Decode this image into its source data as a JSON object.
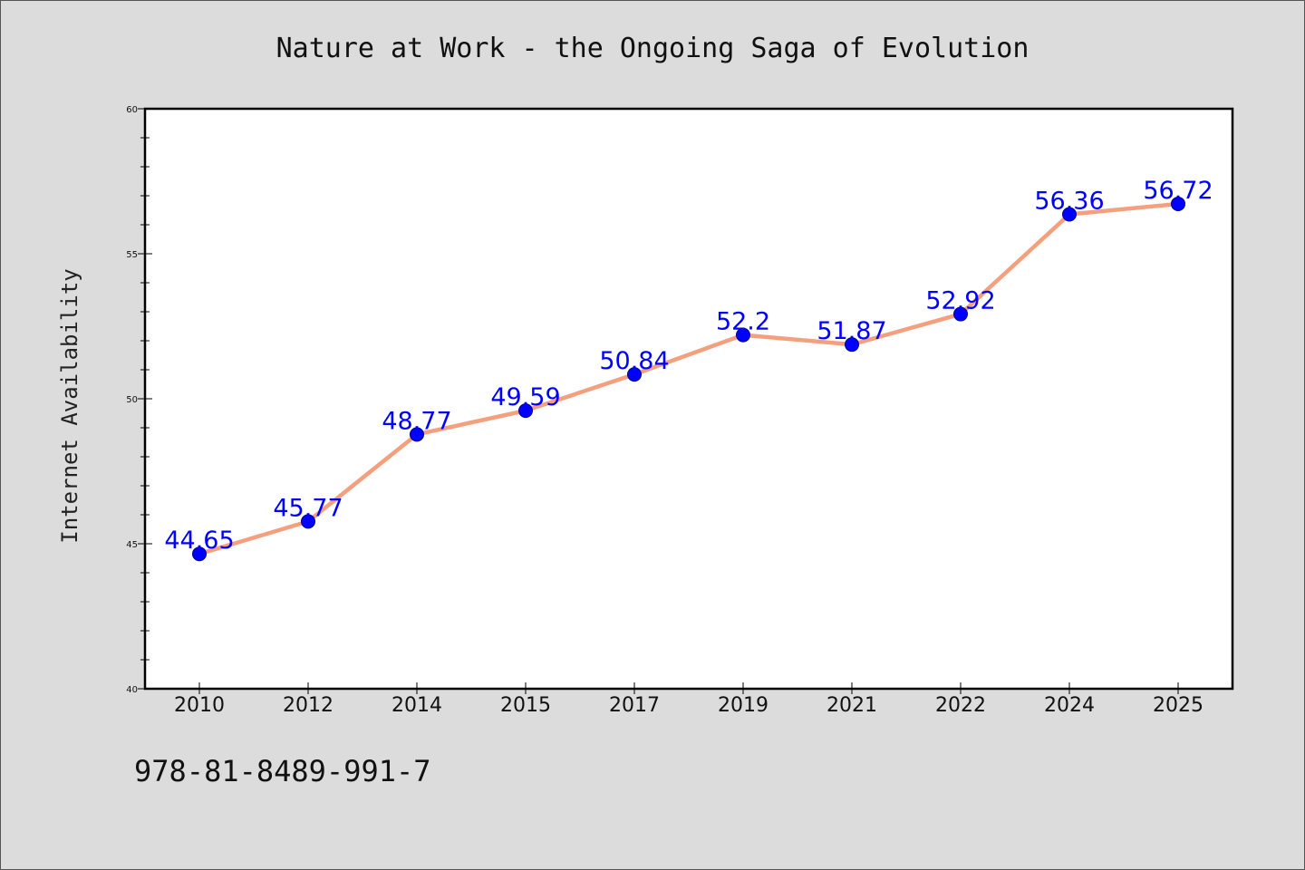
{
  "chart_data": {
    "type": "line",
    "title": "Nature at Work - the Ongoing Saga of Evolution",
    "xlabel": "",
    "ylabel": "Internet Availability",
    "categories": [
      "2010",
      "2012",
      "2014",
      "2015",
      "2017",
      "2019",
      "2021",
      "2022",
      "2024",
      "2025"
    ],
    "series": [
      {
        "values": [
          44.65,
          45.77,
          48.77,
          49.59,
          50.84,
          52.2,
          51.87,
          52.92,
          56.36,
          56.72
        ]
      }
    ],
    "data_labels": [
      "44.65",
      "45.77",
      "48.77",
      "49.59",
      "50.84",
      "52.2",
      "51.87",
      "52.92",
      "56.36",
      "56.72"
    ],
    "ylim": [
      40,
      60
    ],
    "yticks": [
      40,
      45,
      50,
      55,
      60
    ],
    "grid": false,
    "legend": "none",
    "colors": {
      "line": "#f4a07e",
      "marker": "#0000ff",
      "marker_edge": "#00008b",
      "label": "#0000ff",
      "background": "#dcdcdc",
      "plot_bg": "#ffffff"
    }
  },
  "footer": {
    "isbn": "978-81-8489-991-7"
  }
}
